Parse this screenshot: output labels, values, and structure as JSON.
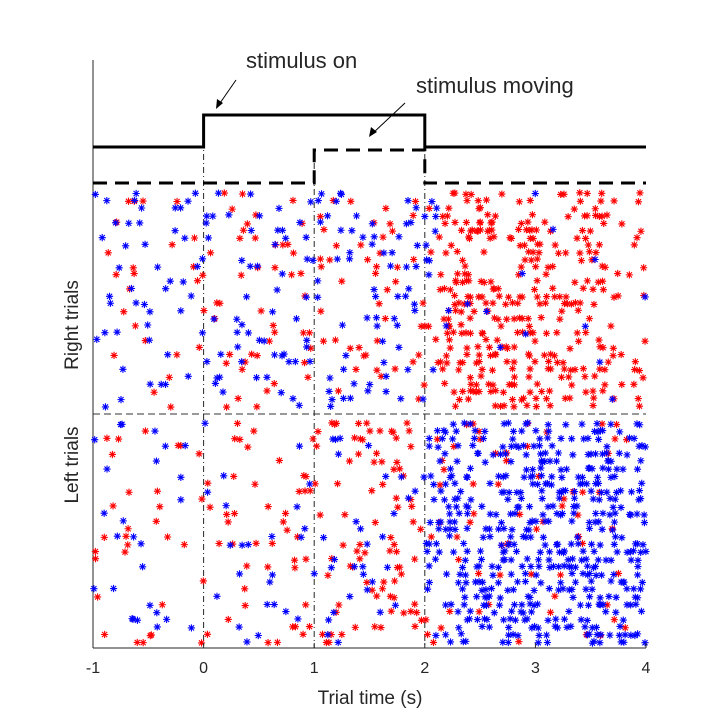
{
  "chart_data": {
    "type": "scatter",
    "title": "",
    "xlabel": "Trial time (s)",
    "ylabel_upper": "Right trials",
    "ylabel_lower": "Left trials",
    "xlim": [
      -1,
      4
    ],
    "xticks": [
      -1,
      0,
      1,
      2,
      3,
      4
    ],
    "xtick_labels": [
      "-1",
      "0",
      "1",
      "2",
      "3",
      "4"
    ],
    "stimulus_on": [
      0,
      2
    ],
    "stimulus_moving": [
      1,
      2
    ],
    "event_lines_x": [
      0,
      1,
      2
    ],
    "annotations": {
      "stimulus_on": "stimulus on",
      "stimulus_moving": "stimulus moving"
    },
    "marker": "*",
    "colors": {
      "red": "#ff0000",
      "blue": "#0000ff",
      "axis": "#262626"
    },
    "right_trials": {
      "trial_count": 30,
      "red_density": [
        [
          -1,
          1.2
        ],
        [
          0,
          1.0
        ],
        [
          1,
          1.4
        ],
        [
          2,
          2.2
        ],
        [
          2.3,
          8.5
        ],
        [
          3.3,
          6.5
        ],
        [
          4,
          3.0
        ]
      ],
      "blue_density": [
        [
          -1,
          1.4
        ],
        [
          0,
          1.4
        ],
        [
          1,
          2.0
        ],
        [
          2,
          2.4
        ],
        [
          2.3,
          0.4
        ],
        [
          4,
          0.2
        ]
      ]
    },
    "left_trials": {
      "trial_count": 30,
      "red_density": [
        [
          -1,
          1.4
        ],
        [
          0,
          1.2
        ],
        [
          1,
          2.0
        ],
        [
          2,
          2.4
        ],
        [
          2.3,
          1.6
        ],
        [
          3,
          1.2
        ],
        [
          4,
          0.8
        ]
      ],
      "blue_density": [
        [
          -1,
          0.8
        ],
        [
          0,
          0.6
        ],
        [
          1,
          0.8
        ],
        [
          2,
          1.2
        ],
        [
          2.2,
          8.0
        ],
        [
          3.3,
          9.0
        ],
        [
          4,
          8.0
        ]
      ]
    }
  }
}
